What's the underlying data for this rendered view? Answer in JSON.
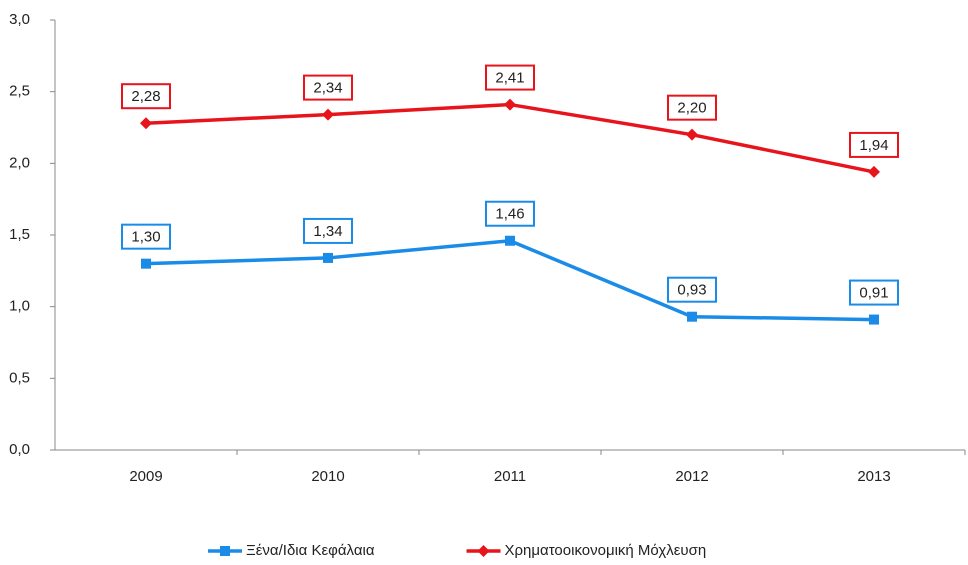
{
  "chart_data": {
    "type": "line",
    "categories": [
      "2009",
      "2010",
      "2011",
      "2012",
      "2013"
    ],
    "series": [
      {
        "name": "Ξένα/Ιδια Κεφάλαια",
        "color": "#1a8ce8",
        "marker": "square",
        "values": [
          1.3,
          1.34,
          1.46,
          0.93,
          0.91
        ],
        "value_labels": [
          "1,30",
          "1,34",
          "1,46",
          "0,93",
          "0,91"
        ]
      },
      {
        "name": "Χρηματοοικονομική Μόχλευση",
        "color": "#e8141c",
        "marker": "diamond",
        "values": [
          2.28,
          2.34,
          2.41,
          2.2,
          1.94
        ],
        "value_labels": [
          "2,28",
          "2,34",
          "2,41",
          "2,20",
          "1,94"
        ]
      }
    ],
    "ylim": [
      0,
      3
    ],
    "yticks": [
      {
        "value": 0,
        "label": "0,0"
      },
      {
        "value": 0.5,
        "label": "0,5"
      },
      {
        "value": 1,
        "label": "1,0"
      },
      {
        "value": 1.5,
        "label": "1,5"
      },
      {
        "value": 2,
        "label": "2,0"
      },
      {
        "value": 2.5,
        "label": "2,5"
      },
      {
        "value": 3,
        "label": "3,0"
      }
    ],
    "grid": false,
    "legend": "bottom"
  }
}
